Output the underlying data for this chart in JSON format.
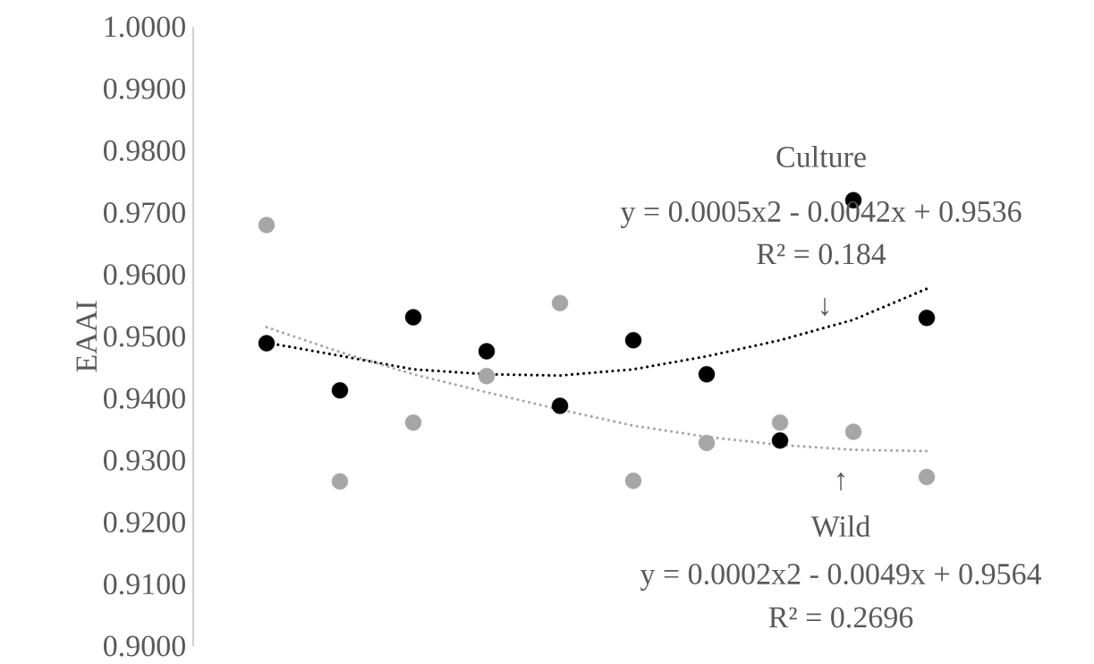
{
  "chart_data": {
    "type": "scatter",
    "ylabel": "EAAI",
    "categories": [
      null,
      null,
      null,
      null,
      null,
      null,
      null,
      null,
      null,
      null
    ],
    "series": [
      {
        "color": "#000000",
        "values": [
          0.9489,
          0.9413,
          0.9531,
          0.9476,
          0.9388,
          0.9494,
          0.9439,
          0.9332,
          0.972,
          0.953
        ]
      },
      {
        "color": "#a6a6a6",
        "values": [
          0.968,
          0.9266,
          0.9361,
          0.9436,
          0.9554,
          0.9267,
          0.9328,
          0.9361,
          0.9346,
          0.9273
        ]
      },
      {
        "type": "line",
        "line_style": "dotted",
        "color": "#000000",
        "values": [
          0.949,
          0.9469,
          0.9447,
          0.9439,
          0.9437,
          0.9447,
          0.9468,
          0.9494,
          0.9527,
          0.9577
        ]
      },
      {
        "type": "line",
        "line_style": "dotted",
        "color": "#a6a6a6",
        "values": [
          0.9515,
          0.9475,
          0.9439,
          0.941,
          0.9382,
          0.9356,
          0.9338,
          0.9325,
          0.9317,
          0.9315
        ]
      }
    ],
    "ylim": [
      0.9,
      1.0
    ],
    "yticks": [
      {
        "value": 0.9,
        "label": "0.9000"
      },
      {
        "value": 0.91,
        "label": "0.9100"
      },
      {
        "value": 0.92,
        "label": "0.9200"
      },
      {
        "value": 0.93,
        "label": "0.9300"
      },
      {
        "value": 0.94,
        "label": "0.9400"
      },
      {
        "value": 0.95,
        "label": "0.9500"
      },
      {
        "value": 0.96,
        "label": "0.9600"
      },
      {
        "value": 0.97,
        "label": "0.9700"
      },
      {
        "value": 0.98,
        "label": "0.9800"
      },
      {
        "value": 0.99,
        "label": "0.9900"
      },
      {
        "value": 1.0,
        "label": "1.0000"
      }
    ],
    "tick_labels": "y",
    "grid": false,
    "legend": false,
    "annotations": [
      "Culture",
      "y = 0.0005x2 - 0.0042x + 0.9536",
      "R² = 0.184",
      "↓",
      "↑",
      "Wild",
      "y = 0.0002x2 - 0.0049x + 0.9564",
      "R² = 0.2696"
    ]
  }
}
